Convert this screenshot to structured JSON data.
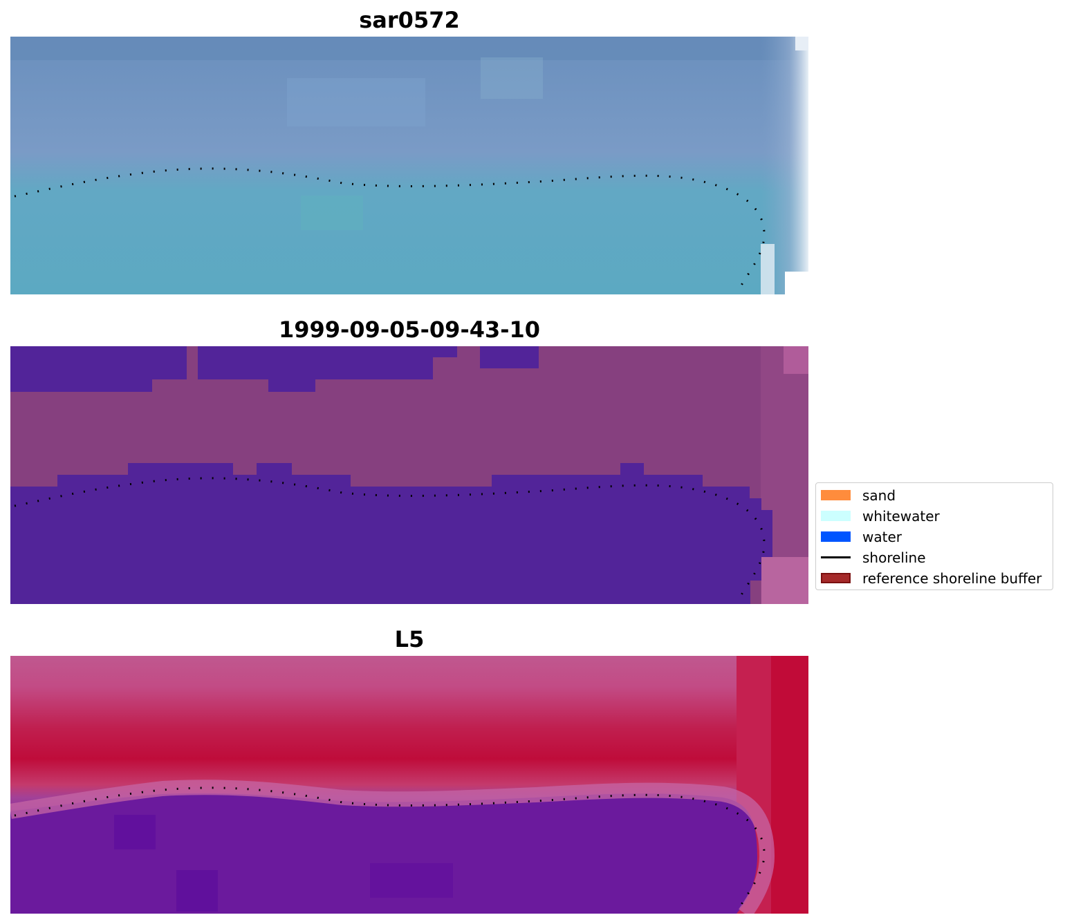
{
  "panels": [
    {
      "title": "sar0572"
    },
    {
      "title": "1999-09-05-09-43-10"
    },
    {
      "title": "L5"
    }
  ],
  "legend": {
    "items": [
      {
        "label": "sand",
        "kind": "patch",
        "color": "#ff8c3c"
      },
      {
        "label": "whitewater",
        "kind": "patch",
        "color": "#ccffff"
      },
      {
        "label": "water",
        "kind": "patch",
        "color": "#0055ff"
      },
      {
        "label": "shoreline",
        "kind": "line",
        "color": "#000000"
      },
      {
        "label": "reference shoreline buffer",
        "kind": "patch",
        "color": "#a52a2a"
      }
    ]
  },
  "colors": {
    "rgb_water": "#5ea9c2",
    "rgb_sea": "#6f93bf",
    "class_water": "#522499",
    "class_land": "#86407f",
    "mndwi_high": "#6b109c",
    "mndwi_low": "#c00a38",
    "shoreline": "#000000"
  }
}
